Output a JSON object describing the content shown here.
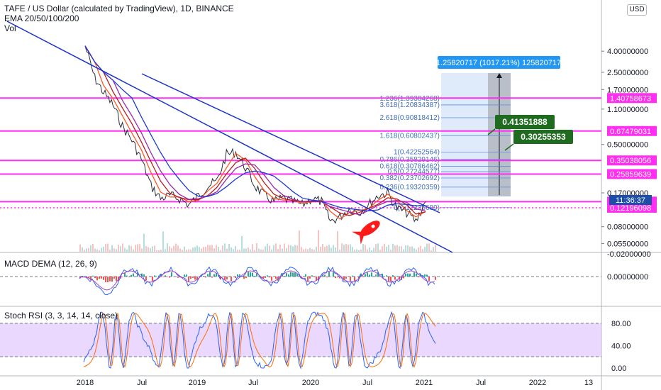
{
  "header": {
    "symbol_title": "TAFE / US Dollar (calculated by TradingView), 1D, BINANCE",
    "ema_label": "EMA 20/50/100/200",
    "vol_label": "Vol",
    "currency_button": "USD"
  },
  "measure": {
    "label": "1.25820717 (1017.21%) 125820717"
  },
  "callouts": [
    {
      "text": "0.41351888",
      "price": 0.4135
    },
    {
      "text": "0.30255353",
      "price": 0.3026
    }
  ],
  "countdown": "11:36:37",
  "chart_data": [
    {
      "type": "line",
      "title": "",
      "price_axis": {
        "scale": "log",
        "ticks": [
          {
            "label": "4.00000000",
            "value": 4.0
          },
          {
            "label": "2.50000000",
            "value": 2.5
          },
          {
            "label": "1.70000000",
            "value": 1.7
          },
          {
            "label": "1.10000000",
            "value": 1.1
          },
          {
            "label": "0.50000000",
            "value": 0.5
          },
          {
            "label": "0.17000000",
            "value": 0.17
          },
          {
            "label": "0.08000000",
            "value": 0.08
          },
          {
            "label": "0.05500000",
            "value": 0.055
          }
        ],
        "ylim": [
          0.045,
          6.0
        ]
      },
      "time_axis": {
        "ticks": [
          "2018",
          "Jul",
          "2019",
          "Jul",
          "2020",
          "Jul",
          "2021",
          "Jul",
          "2022",
          "13"
        ],
        "range": [
          "2017-11",
          "2022-02"
        ]
      },
      "horizontal_levels": [
        {
          "label": "1.40758673",
          "value": 1.4076,
          "color": "#ff2ef0"
        },
        {
          "label": "0.67479031",
          "value": 0.6748,
          "color": "#ff2ef0"
        },
        {
          "label": "0.35038056",
          "value": 0.3504,
          "color": "#ff2ef0"
        },
        {
          "label": "0.25859639",
          "value": 0.2586,
          "color": "#ff2ef0"
        },
        {
          "label": "0.13990764",
          "value": 0.1399,
          "color": "#ff2ef0"
        },
        {
          "label": "0.12196098",
          "value": 0.122,
          "color": "#ff2ef0",
          "style": "dotted"
        }
      ],
      "fib_levels": [
        {
          "label": "1.236(1.39384268)",
          "value": 1.3938
        },
        {
          "label": "3.618(1.20834387)",
          "value": 1.2083
        },
        {
          "label": "2.618(0.90818412)",
          "value": 0.9082
        },
        {
          "label": "1.618(0.60802437)",
          "value": 0.608
        },
        {
          "label": "1(0.42252564)",
          "value": 0.4225
        },
        {
          "label": "0.786(0.35829146)",
          "value": 0.3583
        },
        {
          "label": "0.618(0.30786462)",
          "value": 0.3079
        },
        {
          "label": "0.5(0.27244577)",
          "value": 0.2724
        },
        {
          "label": "0.382(0.23702692)",
          "value": 0.237
        },
        {
          "label": "0.236(0.19320359)",
          "value": 0.1932
        },
        {
          "label": "0(0.12236689)",
          "value": 0.1224
        }
      ],
      "series": [
        {
          "name": "",
          "color": "#2a2e39",
          "x": [
            "2018-01",
            "2018-02",
            "2018-03",
            "2018-04",
            "2018-05",
            "2018-06",
            "2018-07",
            "2018-08",
            "2018-09",
            "2018-10",
            "2018-11",
            "2018-12",
            "2019-01",
            "2019-02",
            "2019-03",
            "2019-04",
            "2019-05",
            "2019-06",
            "2019-07",
            "2019-08",
            "2019-09",
            "2019-10",
            "2019-11",
            "2019-12",
            "2020-01",
            "2020-02",
            "2020-03",
            "2020-04",
            "2020-05",
            "2020-06",
            "2020-07",
            "2020-08",
            "2020-09",
            "2020-10",
            "2020-11",
            "2020-12",
            "2021-01"
          ],
          "values": [
            4.5,
            2.2,
            1.6,
            1.2,
            0.75,
            0.55,
            0.36,
            0.2,
            0.15,
            0.16,
            0.15,
            0.13,
            0.16,
            0.2,
            0.22,
            0.4,
            0.42,
            0.3,
            0.2,
            0.16,
            0.14,
            0.15,
            0.14,
            0.13,
            0.15,
            0.14,
            0.09,
            0.1,
            0.12,
            0.11,
            0.13,
            0.16,
            0.17,
            0.12,
            0.11,
            0.09,
            0.14
          ]
        }
      ]
    },
    {
      "type": "line",
      "title": "MACD DEMA (12, 26, 9)",
      "price_axis": {
        "ticks": [
          {
            "label": "0.00000000",
            "value": 0.0
          },
          {
            "label": "-0.02000000",
            "value": -0.02
          }
        ]
      }
    },
    {
      "type": "line",
      "title": "Stoch RSI (3, 3, 14, 14, close)",
      "price_axis": {
        "ticks": [
          {
            "label": "80.00",
            "value": 80
          },
          {
            "label": "40.00",
            "value": 40
          },
          {
            "label": "0.00",
            "value": 0
          }
        ],
        "band": [
          20,
          80
        ]
      }
    }
  ]
}
